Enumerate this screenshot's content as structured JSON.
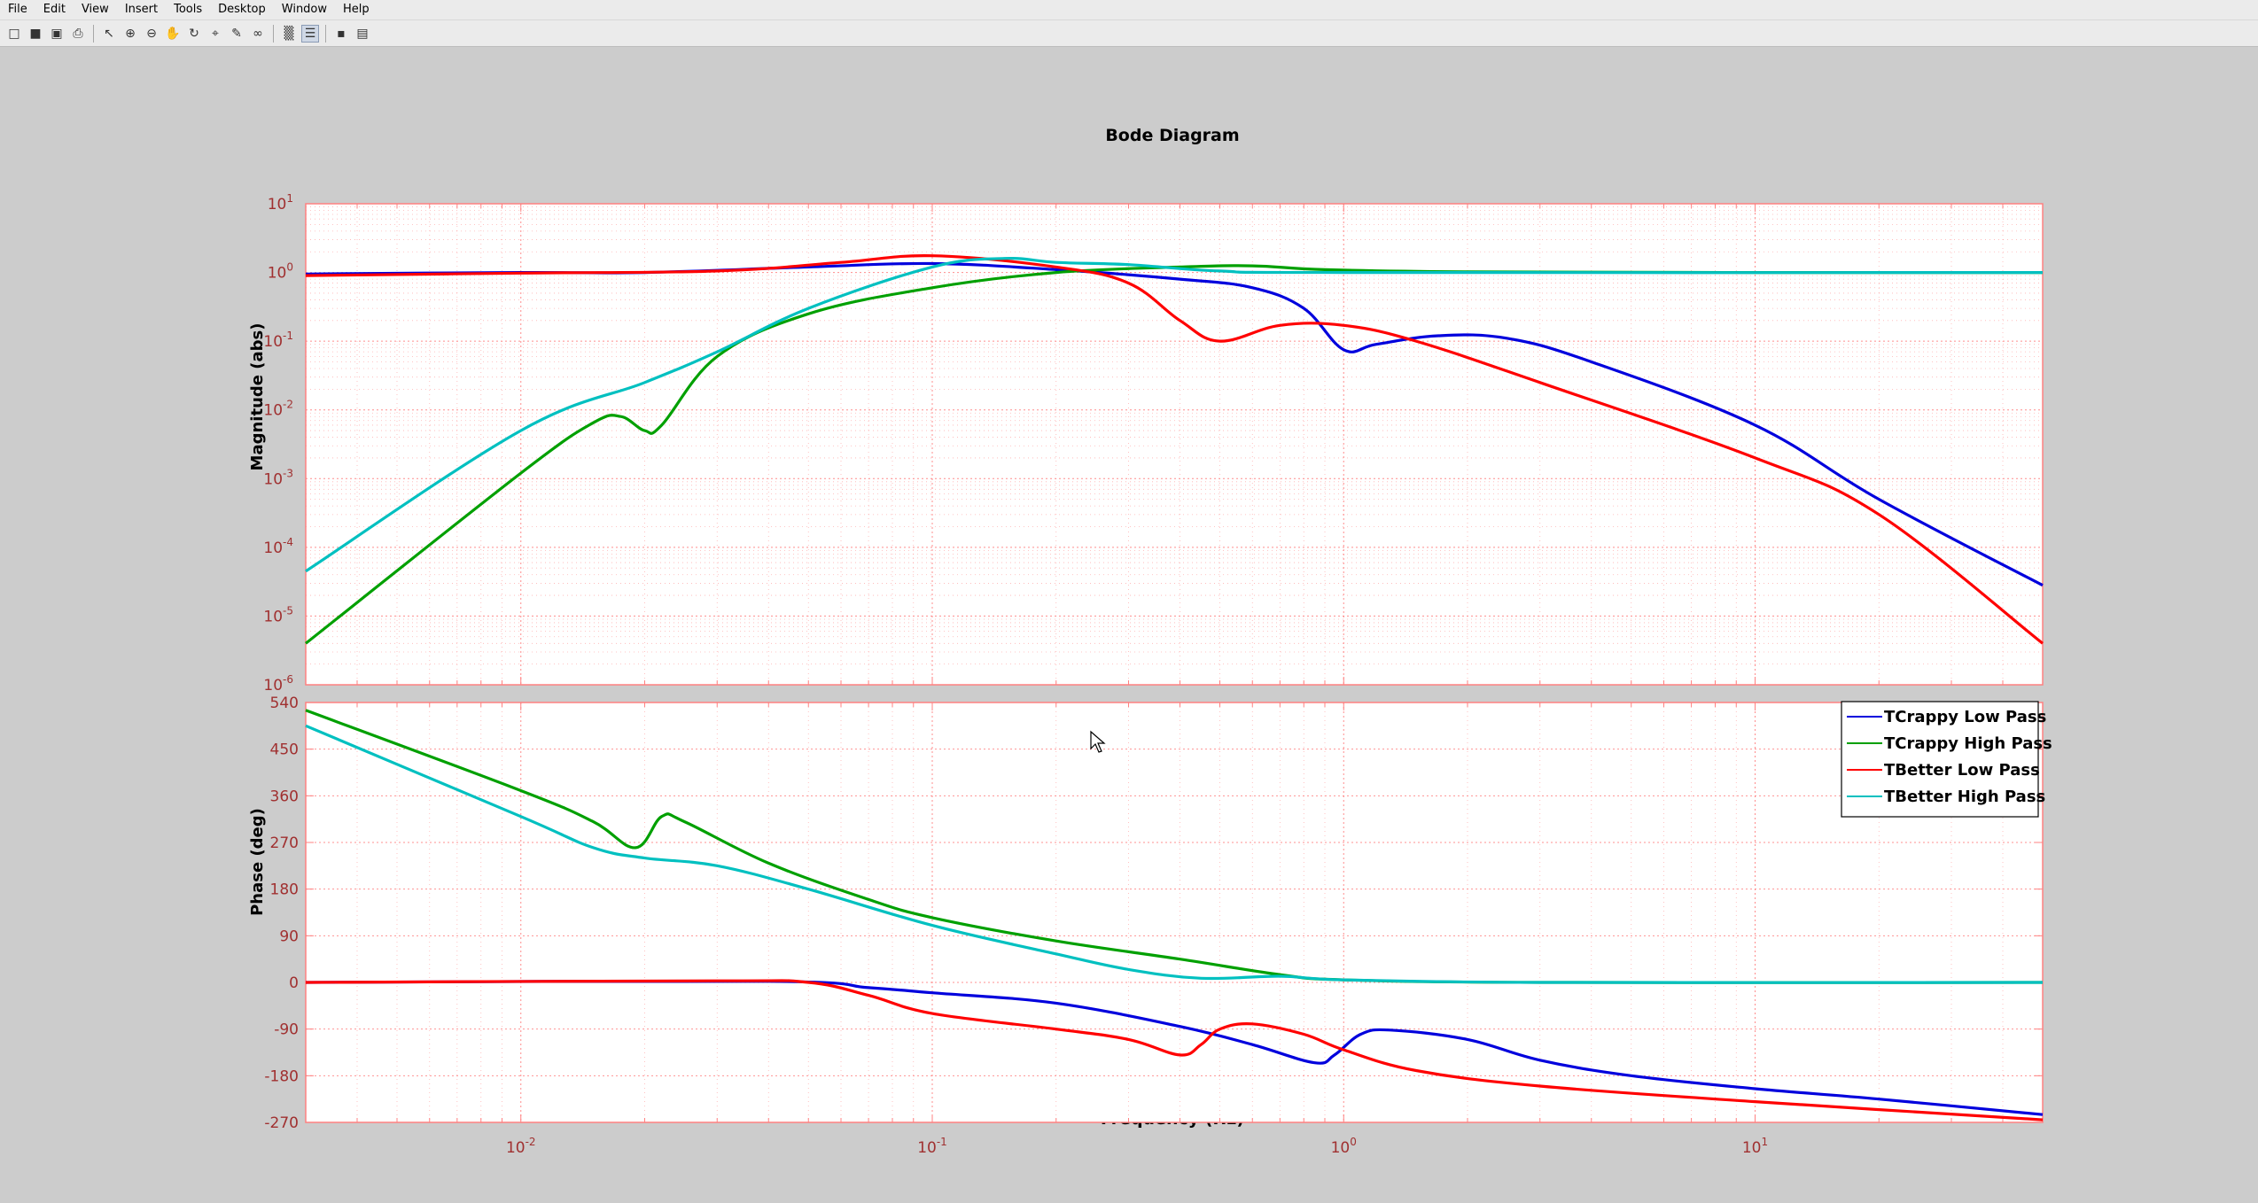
{
  "menu": [
    "File",
    "Edit",
    "View",
    "Insert",
    "Tools",
    "Desktop",
    "Window",
    "Help"
  ],
  "toolbar_icons": [
    "new-figure-icon",
    "open-file-icon",
    "save-icon",
    "print-icon",
    "arrow-select-icon",
    "zoom-in-icon",
    "zoom-out-icon",
    "pan-icon",
    "rotate-icon",
    "data-cursor-icon",
    "brush-icon",
    "link-plot-icon",
    "colorbar-icon",
    "legend-icon",
    "hide-plot-tools-icon",
    "show-plot-tools-icon"
  ],
  "chart_data": {
    "type": "line",
    "title": "Bode Diagram",
    "xlabel": "Frequency  (Hz)",
    "x_scale": "log",
    "xlim": [
      0.003,
      50
    ],
    "x_tick_labels": [
      "10^-2",
      "10^-1",
      "10^0",
      "10^1"
    ],
    "colors": {
      "grid": "#ff8080",
      "tick_labels": "#a03030"
    },
    "magnitude": {
      "ylabel": "Magnitude (abs)",
      "y_scale": "log",
      "ylim": [
        1e-06,
        10
      ],
      "y_tick_labels": [
        "10^1",
        "10^0",
        "10^-1",
        "10^-2",
        "10^-3",
        "10^-4",
        "10^-5",
        "10^-6"
      ]
    },
    "phase": {
      "ylabel": "Phase (deg)",
      "ylim": [
        -270,
        540
      ],
      "y_tick_labels": [
        "540",
        "450",
        "360",
        "270",
        "180",
        "90",
        "0",
        "-90",
        "-180",
        "-270"
      ]
    },
    "legend": {
      "placement": "upper-right of phase plot"
    },
    "series": [
      {
        "name": "TCrappy Low Pass",
        "color": "#0000dd",
        "mag": [
          [
            0.003,
            0.95
          ],
          [
            0.01,
            1.0
          ],
          [
            0.02,
            1.0
          ],
          [
            0.05,
            1.2
          ],
          [
            0.1,
            1.35
          ],
          [
            0.2,
            1.1
          ],
          [
            0.4,
            0.8
          ],
          [
            0.6,
            0.6
          ],
          [
            0.8,
            0.3
          ],
          [
            1.0,
            0.075
          ],
          [
            1.2,
            0.09
          ],
          [
            1.7,
            0.12
          ],
          [
            2.5,
            0.11
          ],
          [
            4,
            0.05
          ],
          [
            10,
            0.006
          ],
          [
            20,
            0.0005
          ],
          [
            50,
            2.8e-05
          ]
        ],
        "phase": [
          [
            0.003,
            0
          ],
          [
            0.04,
            2
          ],
          [
            0.07,
            -10
          ],
          [
            0.1,
            -20
          ],
          [
            0.2,
            -40
          ],
          [
            0.4,
            -85
          ],
          [
            0.6,
            -120
          ],
          [
            0.85,
            -155
          ],
          [
            0.95,
            -140
          ],
          [
            1.1,
            -100
          ],
          [
            1.3,
            -92
          ],
          [
            2,
            -110
          ],
          [
            3,
            -150
          ],
          [
            5,
            -180
          ],
          [
            10,
            -205
          ],
          [
            20,
            -225
          ],
          [
            50,
            -255
          ]
        ]
      },
      {
        "name": "TCrappy High Pass",
        "color": "#00a000",
        "mag": [
          [
            0.003,
            4e-06
          ],
          [
            0.01,
            0.0012
          ],
          [
            0.015,
            0.0065
          ],
          [
            0.0175,
            0.008
          ],
          [
            0.02,
            0.005
          ],
          [
            0.022,
            0.006
          ],
          [
            0.03,
            0.06
          ],
          [
            0.05,
            0.25
          ],
          [
            0.1,
            0.6
          ],
          [
            0.2,
            1.0
          ],
          [
            0.4,
            1.2
          ],
          [
            0.6,
            1.25
          ],
          [
            0.9,
            1.1
          ],
          [
            2,
            1.02
          ],
          [
            10,
            1.0
          ],
          [
            50,
            1.0
          ]
        ],
        "phase": [
          [
            0.003,
            525
          ],
          [
            0.01,
            370
          ],
          [
            0.015,
            310
          ],
          [
            0.019,
            260
          ],
          [
            0.022,
            320
          ],
          [
            0.025,
            310
          ],
          [
            0.04,
            230
          ],
          [
            0.07,
            160
          ],
          [
            0.1,
            125
          ],
          [
            0.2,
            80
          ],
          [
            0.4,
            45
          ],
          [
            0.7,
            15
          ],
          [
            1.0,
            5
          ],
          [
            3,
            0
          ],
          [
            50,
            0
          ]
        ]
      },
      {
        "name": "TBetter Low Pass",
        "color": "#ff0000",
        "mag": [
          [
            0.003,
            0.9
          ],
          [
            0.01,
            0.98
          ],
          [
            0.03,
            1.05
          ],
          [
            0.06,
            1.4
          ],
          [
            0.1,
            1.75
          ],
          [
            0.2,
            1.2
          ],
          [
            0.3,
            0.7
          ],
          [
            0.4,
            0.2
          ],
          [
            0.5,
            0.1
          ],
          [
            0.7,
            0.17
          ],
          [
            1.0,
            0.17
          ],
          [
            1.5,
            0.1
          ],
          [
            3,
            0.025
          ],
          [
            10,
            0.002
          ],
          [
            20,
            0.0003
          ],
          [
            50,
            4e-06
          ]
        ],
        "phase": [
          [
            0.003,
            0
          ],
          [
            0.03,
            3
          ],
          [
            0.05,
            0
          ],
          [
            0.07,
            -25
          ],
          [
            0.1,
            -60
          ],
          [
            0.2,
            -90
          ],
          [
            0.3,
            -110
          ],
          [
            0.4,
            -140
          ],
          [
            0.45,
            -120
          ],
          [
            0.5,
            -90
          ],
          [
            0.6,
            -80
          ],
          [
            0.8,
            -100
          ],
          [
            1.0,
            -130
          ],
          [
            1.5,
            -170
          ],
          [
            3,
            -200
          ],
          [
            10,
            -230
          ],
          [
            50,
            -265
          ]
        ]
      },
      {
        "name": "TBetter High Pass",
        "color": "#00c0c0",
        "mag": [
          [
            0.003,
            4.5e-05
          ],
          [
            0.01,
            0.005
          ],
          [
            0.02,
            0.025
          ],
          [
            0.03,
            0.07
          ],
          [
            0.05,
            0.3
          ],
          [
            0.1,
            1.2
          ],
          [
            0.15,
            1.6
          ],
          [
            0.2,
            1.4
          ],
          [
            0.3,
            1.3
          ],
          [
            0.5,
            1.05
          ],
          [
            1.0,
            1.0
          ],
          [
            50,
            1.0
          ]
        ],
        "phase": [
          [
            0.003,
            495
          ],
          [
            0.01,
            320
          ],
          [
            0.015,
            260
          ],
          [
            0.02,
            240
          ],
          [
            0.03,
            225
          ],
          [
            0.05,
            180
          ],
          [
            0.1,
            110
          ],
          [
            0.2,
            55
          ],
          [
            0.3,
            25
          ],
          [
            0.45,
            8
          ],
          [
            0.7,
            12
          ],
          [
            1.0,
            5
          ],
          [
            3,
            0
          ],
          [
            50,
            0
          ]
        ]
      }
    ]
  }
}
